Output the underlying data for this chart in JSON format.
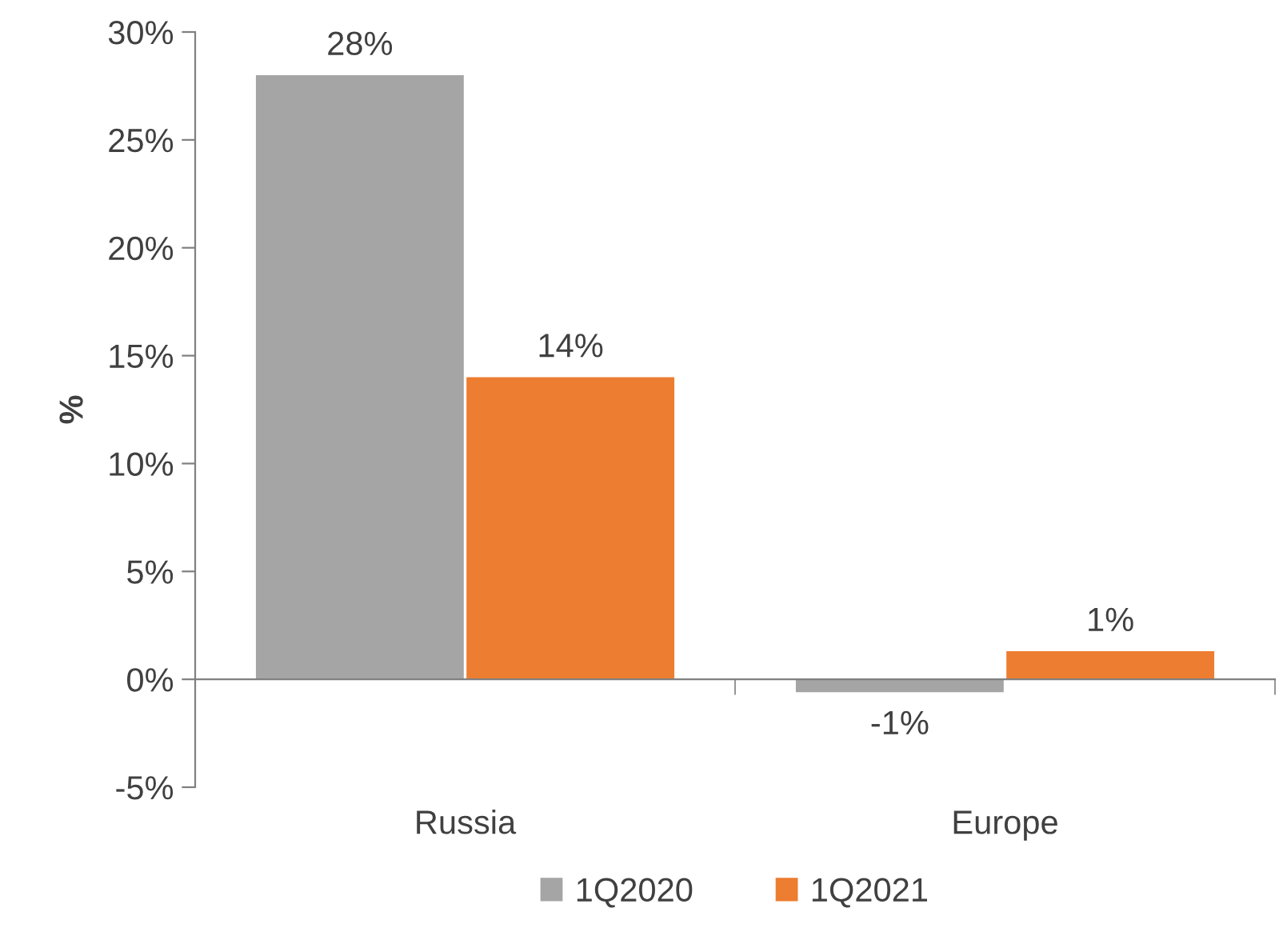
{
  "chart_data": {
    "type": "bar",
    "ylabel": "%",
    "categories": [
      "Russia",
      "Europe"
    ],
    "series": [
      {
        "name": "1Q2020",
        "color": "#a5a5a5",
        "values": [
          28,
          -0.6
        ],
        "value_labels": [
          "28%",
          "-1%"
        ]
      },
      {
        "name": "1Q2021",
        "color": "#ed7d31",
        "values": [
          14,
          1.3
        ],
        "value_labels": [
          "14%",
          "1%"
        ]
      }
    ],
    "ylim": [
      -5,
      30
    ],
    "yticks": [
      {
        "value": -5,
        "label": "-5%"
      },
      {
        "value": 0,
        "label": "0%"
      },
      {
        "value": 5,
        "label": "5%"
      },
      {
        "value": 10,
        "label": "10%"
      },
      {
        "value": 15,
        "label": "15%"
      },
      {
        "value": 20,
        "label": "20%"
      },
      {
        "value": 25,
        "label": "25%"
      },
      {
        "value": 30,
        "label": "30%"
      }
    ],
    "legend": "bottom"
  }
}
